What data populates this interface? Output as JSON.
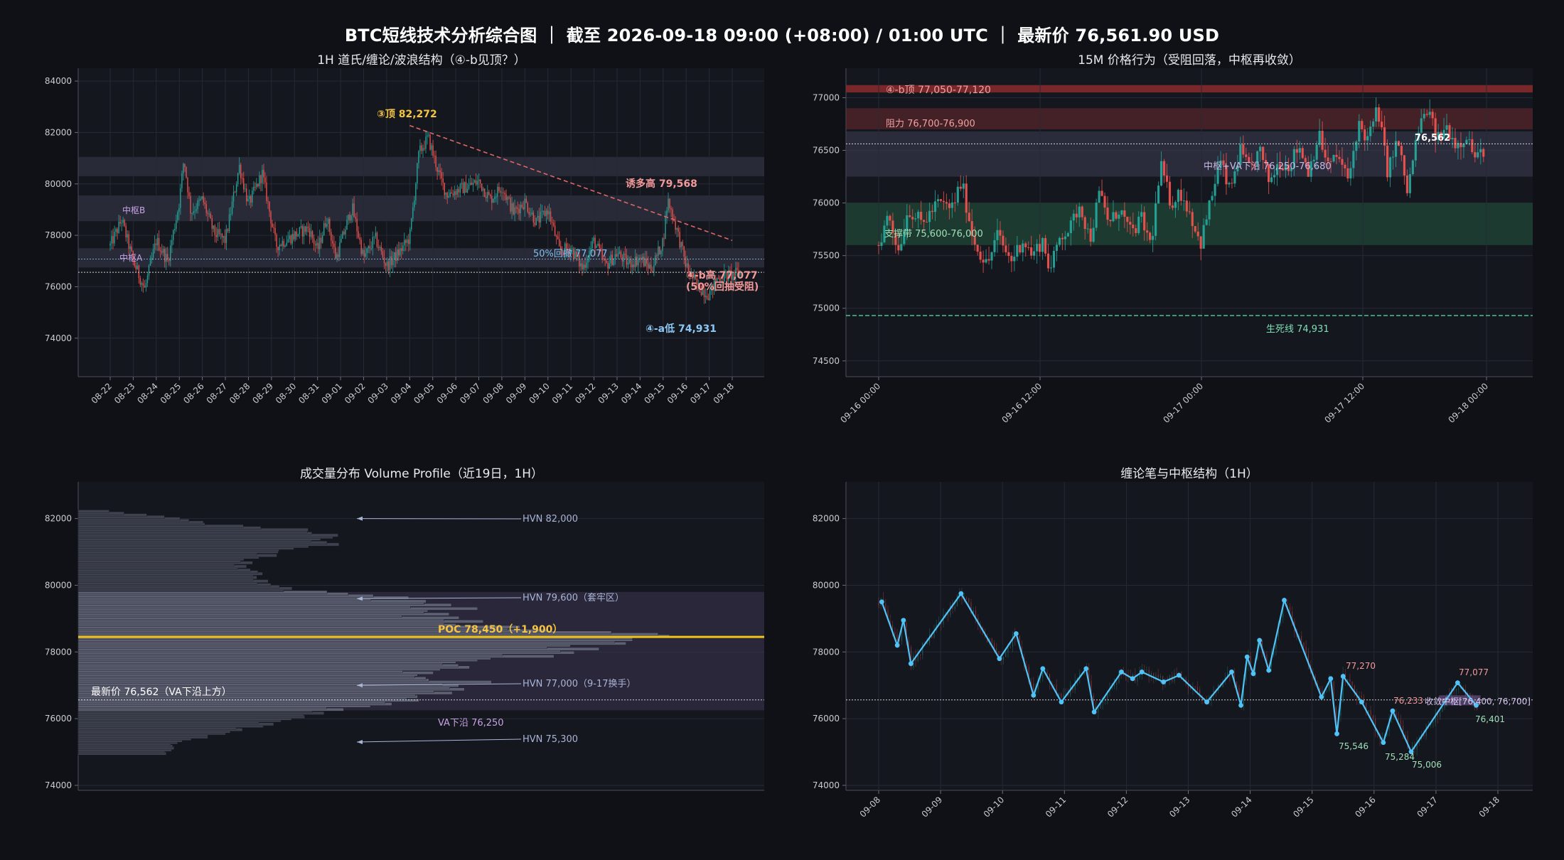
{
  "title": "BTC短线技术分析综合图 ｜ 截至 2026-09-18 09:00 (+08:00) / 01:00 UTC ｜ 最新价 76,561.90 USD",
  "colors": {
    "up": "#26a69a",
    "down": "#ef5350",
    "panel_bg": "#15171e",
    "grid": "#262936",
    "zone_gray": "#3a3a4e",
    "zone_red": "#6b2a30",
    "zone_green": "#1f4a36",
    "trend_line": "#e06666",
    "poc": "#f0c419",
    "pen": "#4fc3f7",
    "text_dim": "#c9ccd3"
  },
  "chart_data": [
    {
      "id": "wave",
      "type": "candlestick",
      "title": "1H 道氏/缠论/波浪结构（④-b见顶？）",
      "ylim": [
        72500,
        84500
      ],
      "yticks": [
        74000,
        76000,
        78000,
        80000,
        82000,
        84000
      ],
      "xticks": [
        "08-22",
        "08-23",
        "08-24",
        "08-25",
        "08-26",
        "08-27",
        "08-28",
        "08-29",
        "08-30",
        "08-31",
        "09-01",
        "09-02",
        "09-03",
        "09-04",
        "09-05",
        "09-06",
        "09-07",
        "09-08",
        "09-09",
        "09-10",
        "09-11",
        "09-12",
        "09-13",
        "09-14",
        "09-15",
        "09-16",
        "09-17",
        "09-18"
      ],
      "path": [
        [
          0,
          77600
        ],
        [
          0.5,
          78600
        ],
        [
          1,
          77000
        ],
        [
          1.5,
          75900
        ],
        [
          2,
          77800
        ],
        [
          2.5,
          77000
        ],
        [
          3,
          79300
        ],
        [
          3.2,
          81000
        ],
        [
          3.5,
          78900
        ],
        [
          4,
          79400
        ],
        [
          4.5,
          78100
        ],
        [
          5,
          77800
        ],
        [
          5.6,
          80700
        ],
        [
          6,
          79200
        ],
        [
          6.6,
          80400
        ],
        [
          7.2,
          77600
        ],
        [
          8,
          78000
        ],
        [
          8.6,
          78300
        ],
        [
          9,
          77400
        ],
        [
          9.4,
          78700
        ],
        [
          9.8,
          77100
        ],
        [
          10.5,
          79100
        ],
        [
          11,
          77100
        ],
        [
          11.5,
          77900
        ],
        [
          12,
          76800
        ],
        [
          12.5,
          77300
        ],
        [
          13,
          77900
        ],
        [
          13.4,
          81200
        ],
        [
          13.8,
          81800
        ],
        [
          14.3,
          80300
        ],
        [
          14.6,
          79600
        ],
        [
          15.5,
          79900
        ],
        [
          16,
          80100
        ],
        [
          16.5,
          79400
        ],
        [
          17,
          79900
        ],
        [
          17.5,
          78900
        ],
        [
          18,
          79300
        ],
        [
          18.5,
          78500
        ],
        [
          19,
          79000
        ],
        [
          19.5,
          77400
        ],
        [
          20,
          77500
        ],
        [
          20.5,
          76700
        ],
        [
          21,
          77800
        ],
        [
          21.5,
          76800
        ],
        [
          22,
          77300
        ],
        [
          22.5,
          76900
        ],
        [
          23,
          77100
        ],
        [
          23.5,
          76700
        ],
        [
          24,
          77800
        ],
        [
          24.2,
          79400
        ],
        [
          24.6,
          78200
        ],
        [
          25,
          76800
        ],
        [
          25.5,
          76000
        ],
        [
          26,
          75700
        ],
        [
          26.3,
          76300
        ],
        [
          26.6,
          76400
        ],
        [
          27,
          76450
        ],
        [
          27.4,
          76600
        ]
      ],
      "zones": [
        {
          "y0": 80300,
          "y1": 81050
        },
        {
          "y0": 78550,
          "y1": 79550
        },
        {
          "y0": 76750,
          "y1": 77500
        }
      ],
      "fib_50": 77077,
      "last_price": 76562,
      "trendline": [
        [
          13.0,
          82272
        ],
        [
          27.0,
          77800
        ]
      ],
      "labels": {
        "top3": "③顶 82,272",
        "lure_high": "诱多高 79,568",
        "fib_label": "50%回撤 77,077",
        "b4_top_1": "④-b高 77,077",
        "b4_top_2": "(50%回抽受阻)",
        "a4_low": "④-a低 74,931",
        "hubB": "中枢B",
        "hubA": "中枢A"
      }
    },
    {
      "id": "m15",
      "type": "candlestick",
      "title": "15M 价格行为（受阻回落，中枢再收敛）",
      "ylim": [
        74350,
        77280
      ],
      "yticks": [
        74500,
        75000,
        75500,
        76000,
        76500,
        77000
      ],
      "xticks": [
        "09-16 00:00",
        "09-16 12:00",
        "09-17 00:00",
        "09-17 12:00",
        "09-18 00:00"
      ],
      "path": [
        [
          0,
          75600
        ],
        [
          0.05,
          75900
        ],
        [
          0.1,
          75550
        ],
        [
          0.15,
          75950
        ],
        [
          0.22,
          75800
        ],
        [
          0.3,
          76000
        ],
        [
          0.37,
          75950
        ],
        [
          0.42,
          76200
        ],
        [
          0.48,
          75650
        ],
        [
          0.55,
          75400
        ],
        [
          0.6,
          75700
        ],
        [
          0.67,
          75450
        ],
        [
          0.73,
          75650
        ],
        [
          0.78,
          75500
        ],
        [
          0.83,
          75650
        ],
        [
          0.87,
          75350
        ],
        [
          0.92,
          75700
        ],
        [
          0.97,
          75750
        ],
        [
          1.02,
          76000
        ],
        [
          1.07,
          75650
        ],
        [
          1.12,
          76100
        ],
        [
          1.17,
          75800
        ],
        [
          1.22,
          75950
        ],
        [
          1.28,
          75700
        ],
        [
          1.33,
          75850
        ],
        [
          1.38,
          75600
        ],
        [
          1.43,
          76350
        ],
        [
          1.48,
          76000
        ],
        [
          1.53,
          76100
        ],
        [
          1.58,
          75900
        ],
        [
          1.63,
          75600
        ],
        [
          1.68,
          76000
        ],
        [
          1.73,
          76400
        ],
        [
          1.78,
          76100
        ],
        [
          1.83,
          76500
        ],
        [
          1.88,
          76300
        ],
        [
          1.93,
          76500
        ],
        [
          1.98,
          76200
        ],
        [
          2.03,
          76400
        ],
        [
          2.08,
          76350
        ],
        [
          2.13,
          76550
        ],
        [
          2.18,
          76300
        ],
        [
          2.23,
          76650
        ],
        [
          2.28,
          76350
        ],
        [
          2.33,
          76450
        ],
        [
          2.38,
          76200
        ],
        [
          2.43,
          76750
        ],
        [
          2.48,
          76600
        ],
        [
          2.53,
          76900
        ],
        [
          2.58,
          76300
        ],
        [
          2.63,
          76600
        ],
        [
          2.68,
          76100
        ],
        [
          2.73,
          76650
        ],
        [
          2.78,
          76900
        ],
        [
          2.83,
          76600
        ],
        [
          2.88,
          76720
        ],
        [
          2.93,
          76550
        ],
        [
          2.98,
          76650
        ],
        [
          3.03,
          76400
        ],
        [
          3.08,
          76560
        ]
      ],
      "zones": [
        {
          "kind": "red_dark",
          "y0": 77050,
          "y1": 77120
        },
        {
          "kind": "red",
          "y0": 76700,
          "y1": 76900
        },
        {
          "kind": "gray",
          "y0": 76250,
          "y1": 76680
        },
        {
          "kind": "green",
          "y0": 75600,
          "y1": 76000
        }
      ],
      "lines": {
        "last": 76562,
        "lifeline": 74931
      },
      "labels": {
        "b4_top": "④-b顶 77,050-77,120",
        "resist": "阻力 76,700-76,900",
        "hub_va": "中枢+VA下沿 76,250-76,680",
        "support": "支撑带 75,600-76,000",
        "last": "76,562",
        "lifeline": "生死线 74,931"
      }
    },
    {
      "id": "vp",
      "type": "volume_profile",
      "title": "成交量分布 Volume Profile（近19日，1H）",
      "ylim": [
        73850,
        83100
      ],
      "yticks": [
        74000,
        76000,
        78000,
        80000,
        82000
      ],
      "value_area": [
        76250,
        79800
      ],
      "poc": 78450,
      "last_price": 76562,
      "profile": [
        [
          75000,
          0.14
        ],
        [
          75300,
          0.16
        ],
        [
          75500,
          0.22
        ],
        [
          75700,
          0.27
        ],
        [
          75900,
          0.32
        ],
        [
          76100,
          0.38
        ],
        [
          76300,
          0.44
        ],
        [
          76500,
          0.52
        ],
        [
          76700,
          0.6
        ],
        [
          76900,
          0.64
        ],
        [
          77000,
          0.66
        ],
        [
          77200,
          0.61
        ],
        [
          77400,
          0.57
        ],
        [
          77600,
          0.63
        ],
        [
          77800,
          0.71
        ],
        [
          78000,
          0.79
        ],
        [
          78200,
          0.87
        ],
        [
          78450,
          0.95
        ],
        [
          78700,
          0.72
        ],
        [
          78900,
          0.63
        ],
        [
          79100,
          0.57
        ],
        [
          79300,
          0.61
        ],
        [
          79600,
          0.52
        ],
        [
          79800,
          0.38
        ],
        [
          80000,
          0.3
        ],
        [
          80200,
          0.28
        ],
        [
          80400,
          0.31
        ],
        [
          80600,
          0.26
        ],
        [
          80800,
          0.3
        ],
        [
          81000,
          0.33
        ],
        [
          81200,
          0.39
        ],
        [
          81400,
          0.44
        ],
        [
          81600,
          0.4
        ],
        [
          81800,
          0.24
        ],
        [
          82000,
          0.16
        ],
        [
          82200,
          0.05
        ]
      ],
      "labels": {
        "hvn1": "HVN 82,000",
        "hvn2": "HVN 79,600（套牢区）",
        "poc": "POC 78,450（+1,900）",
        "hvn3": "HVN 77,000（9-17换手）",
        "last": "最新价 76,562（VA下沿上方）",
        "va_low": "VA下沿 76,250",
        "hvn4": "HVN 75,300"
      }
    },
    {
      "id": "pens",
      "type": "line",
      "title": "缠论笔与中枢结构（1H）",
      "ylim": [
        73850,
        83100
      ],
      "yticks": [
        74000,
        76000,
        78000,
        80000,
        82000
      ],
      "xticks": [
        "09-08",
        "09-09",
        "09-10",
        "09-11",
        "09-12",
        "09-13",
        "09-14",
        "09-15",
        "09-16",
        "09-17",
        "09-18"
      ],
      "pens": [
        [
          0.05,
          79500
        ],
        [
          0.3,
          78200
        ],
        [
          0.4,
          78950
        ],
        [
          0.52,
          77650
        ],
        [
          1.33,
          79750
        ],
        [
          1.95,
          77800
        ],
        [
          2.22,
          78550
        ],
        [
          2.5,
          76700
        ],
        [
          2.65,
          77500
        ],
        [
          2.95,
          76500
        ],
        [
          3.35,
          77500
        ],
        [
          3.48,
          76200
        ],
        [
          3.92,
          77400
        ],
        [
          4.1,
          77200
        ],
        [
          4.25,
          77400
        ],
        [
          4.6,
          77100
        ],
        [
          4.85,
          77300
        ],
        [
          5.3,
          76500
        ],
        [
          5.7,
          77400
        ],
        [
          5.85,
          76400
        ],
        [
          5.95,
          77850
        ],
        [
          6.05,
          77350
        ],
        [
          6.15,
          78350
        ],
        [
          6.3,
          77450
        ],
        [
          6.55,
          79550
        ],
        [
          7.15,
          76650
        ],
        [
          7.3,
          77200
        ],
        [
          7.4,
          75546
        ],
        [
          7.5,
          77270
        ],
        [
          7.8,
          76500
        ],
        [
          8.15,
          75284
        ],
        [
          8.3,
          76233
        ],
        [
          8.6,
          75006
        ],
        [
          9.35,
          77077
        ],
        [
          9.65,
          76401
        ]
      ],
      "hub": {
        "y0": 76401,
        "y1": 76700
      },
      "last_price": 76562,
      "labels": {
        "p77270": "77,270",
        "p75546": "75,546",
        "p75284": "75,284",
        "p76233": "76,233",
        "p75006": "75,006",
        "p77077": "77,077",
        "p76401": "76,401",
        "hub": "收敛中枢[76,400, 76,700]"
      }
    }
  ]
}
